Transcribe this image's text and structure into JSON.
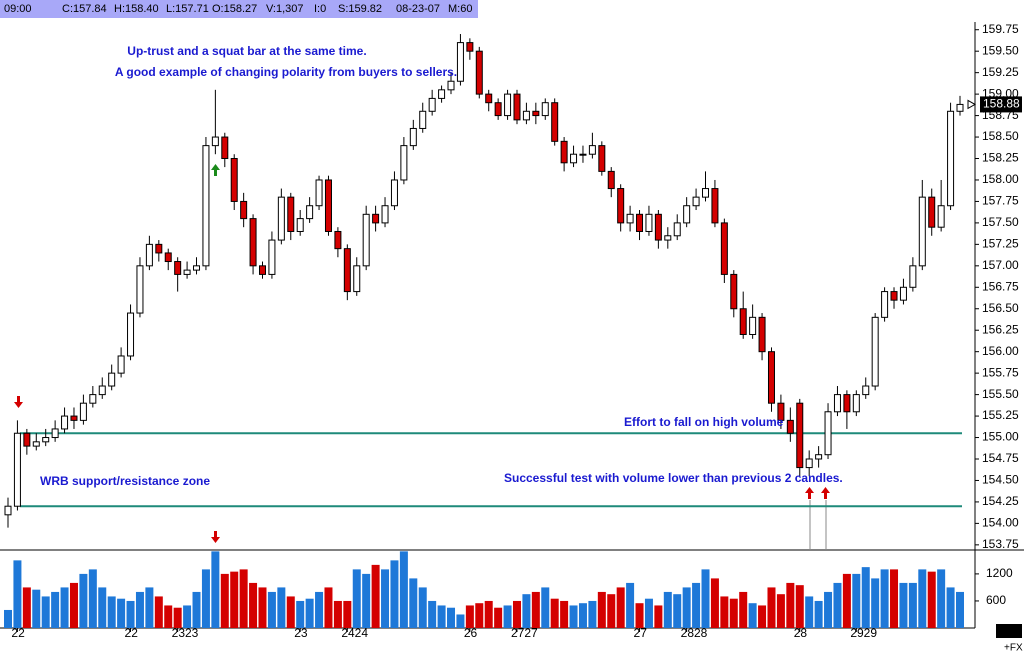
{
  "chart_data": {
    "type": "candlestick",
    "info_bar": [
      "09:00",
      "C:157.84",
      "H:158.40",
      "L:157.71",
      "O:158.27",
      "V:1,307",
      "I:0",
      "S:159.82",
      "08-23-07",
      "M:60"
    ],
    "annotations": [
      "Up-trust and a squat bar at the same time.",
      "A good example of changing polarity from buyers to sellers.",
      "Effort to fall on high volume",
      "WRB support/resistance zone",
      "Successful test with volume lower than previous 2 candles."
    ],
    "corner_label": "+FX",
    "up_color": "#ffffff",
    "down_color": "#d40000",
    "volume_up_color": "#1e78d8",
    "volume_down_color": "#d40000",
    "levels": [
      155.05,
      154.2
    ],
    "level_color": "#1e8a7a",
    "categories": [
      null,
      "22",
      null,
      null,
      null,
      null,
      null,
      null,
      null,
      null,
      null,
      null,
      null,
      "22",
      null,
      null,
      null,
      null,
      "2323",
      null,
      null,
      null,
      null,
      null,
      null,
      null,
      null,
      null,
      null,
      null,
      null,
      "23",
      null,
      null,
      null,
      null,
      "2424",
      null,
      null,
      null,
      null,
      null,
      null,
      null,
      null,
      null,
      null,
      null,
      null,
      "26",
      null,
      null,
      null,
      null,
      "2727",
      null,
      null,
      null,
      null,
      null,
      null,
      null,
      null,
      null,
      null,
      null,
      null,
      "27",
      null,
      null,
      null,
      null,
      "2828",
      null,
      null,
      null,
      null,
      null,
      null,
      null,
      null,
      null,
      null,
      null,
      "28",
      null,
      null,
      null,
      null,
      null,
      "2929",
      null,
      null,
      null,
      null,
      null,
      null,
      null,
      null,
      null,
      null,
      null
    ],
    "open": [
      154.1,
      154.2,
      155.05,
      154.9,
      154.95,
      155,
      155.1,
      155.25,
      155.2,
      155.4,
      155.5,
      155.6,
      155.75,
      155.95,
      156.45,
      157,
      157.25,
      157.15,
      157.05,
      156.9,
      156.95,
      157,
      158.4,
      158.5,
      158.25,
      157.75,
      157.55,
      157,
      156.9,
      157.3,
      157.8,
      157.4,
      157.55,
      157.7,
      158,
      157.4,
      157.2,
      156.7,
      157,
      157.6,
      157.5,
      157.7,
      158,
      158.4,
      158.6,
      158.8,
      158.95,
      159.05,
      159.15,
      159.6,
      159.5,
      159,
      158.9,
      158.75,
      159,
      158.7,
      158.8,
      158.75,
      158.9,
      158.45,
      158.2,
      158.3,
      158.3,
      158.4,
      158.1,
      157.9,
      157.5,
      157.6,
      157.4,
      157.6,
      157.3,
      157.35,
      157.5,
      157.7,
      157.8,
      157.9,
      157.5,
      156.9,
      156.5,
      156.2,
      156.4,
      156,
      155.4,
      155.2,
      155.4,
      154.65,
      154.75,
      154.8,
      155.3,
      155.5,
      155.3,
      155.5,
      155.6,
      156.4,
      156.7,
      156.6,
      156.75,
      157,
      157.8,
      157.45,
      157.7,
      158.8
    ],
    "high": [
      154.3,
      155.2,
      155.1,
      155.05,
      155.1,
      155.2,
      155.35,
      155.35,
      155.5,
      155.6,
      155.7,
      155.85,
      156.05,
      156.55,
      157.1,
      157.35,
      157.3,
      157.2,
      157.1,
      157.05,
      157.1,
      158.5,
      159.05,
      158.55,
      158.3,
      157.85,
      157.6,
      157.05,
      157.4,
      157.9,
      157.85,
      157.65,
      157.8,
      158.05,
      158.05,
      157.45,
      157.25,
      157.1,
      157.7,
      157.7,
      157.8,
      158.1,
      158.5,
      158.7,
      158.9,
      159.05,
      159.1,
      159.25,
      159.7,
      159.65,
      159.55,
      159.05,
      158.95,
      159.05,
      159.05,
      158.9,
      158.9,
      158.95,
      158.95,
      158.5,
      158.4,
      158.4,
      158.55,
      158.45,
      158.15,
      157.95,
      157.7,
      157.65,
      157.7,
      157.65,
      157.45,
      157.6,
      157.8,
      157.9,
      158.1,
      158,
      157.55,
      156.95,
      156.7,
      156.55,
      156.45,
      156.05,
      155.5,
      155.35,
      155.45,
      154.85,
      154.9,
      155.4,
      155.6,
      155.55,
      155.55,
      155.7,
      156.45,
      156.75,
      156.75,
      156.85,
      157.1,
      158,
      157.9,
      158,
      158.9,
      158.98
    ],
    "low": [
      153.95,
      154.15,
      154.8,
      154.85,
      154.9,
      154.95,
      155.05,
      155.1,
      155.15,
      155.35,
      155.45,
      155.55,
      155.7,
      155.9,
      156.4,
      156.95,
      157.05,
      156.95,
      156.7,
      156.85,
      156.9,
      156.95,
      158.3,
      158.15,
      157.65,
      157.45,
      156.9,
      156.85,
      156.85,
      157.25,
      157.3,
      157.35,
      157.5,
      157.65,
      157.35,
      157.1,
      156.6,
      156.65,
      156.95,
      157.4,
      157.45,
      157.65,
      157.95,
      158.35,
      158.55,
      158.75,
      158.9,
      159,
      159.1,
      159.4,
      158.95,
      158.8,
      158.7,
      158.7,
      158.65,
      158.65,
      158.65,
      158.7,
      158.4,
      158.1,
      158.15,
      158.2,
      158.25,
      158.05,
      157.8,
      157.4,
      157.4,
      157.3,
      157.35,
      157.2,
      157.2,
      157.3,
      157.45,
      157.65,
      157.75,
      157.45,
      156.8,
      156.4,
      156.15,
      156.15,
      155.9,
      155.3,
      155.1,
      154.95,
      154.55,
      154.55,
      154.65,
      154.75,
      155.25,
      155.1,
      155.25,
      155.45,
      155.55,
      156.35,
      156.5,
      156.55,
      156.7,
      156.95,
      157.35,
      157.4,
      157.65,
      158.75
    ],
    "close": [
      154.2,
      155.05,
      154.9,
      154.95,
      155,
      155.1,
      155.25,
      155.2,
      155.4,
      155.5,
      155.6,
      155.75,
      155.95,
      156.45,
      157,
      157.25,
      157.15,
      157.05,
      156.9,
      156.95,
      157,
      158.4,
      158.5,
      158.25,
      157.75,
      157.55,
      157,
      156.9,
      157.3,
      157.8,
      157.4,
      157.55,
      157.7,
      158,
      157.4,
      157.2,
      156.7,
      157,
      157.6,
      157.5,
      157.7,
      158,
      158.4,
      158.6,
      158.8,
      158.95,
      159.05,
      159.15,
      159.6,
      159.5,
      159,
      158.9,
      158.75,
      159,
      158.7,
      158.8,
      158.75,
      158.9,
      158.45,
      158.2,
      158.3,
      158.3,
      158.4,
      158.1,
      157.9,
      157.5,
      157.6,
      157.4,
      157.6,
      157.3,
      157.35,
      157.5,
      157.7,
      157.8,
      157.9,
      157.5,
      156.9,
      156.5,
      156.2,
      156.4,
      156,
      155.4,
      155.2,
      155.05,
      154.65,
      154.75,
      154.8,
      155.3,
      155.5,
      155.3,
      155.5,
      155.6,
      156.4,
      156.7,
      156.6,
      156.75,
      157,
      157.8,
      157.45,
      157.7,
      158.8,
      158.88
    ],
    "volume": [
      400,
      1500,
      900,
      850,
      700,
      800,
      900,
      1000,
      1200,
      1300,
      900,
      700,
      650,
      600,
      800,
      900,
      700,
      500,
      450,
      500,
      800,
      1300,
      1700,
      1200,
      1250,
      1300,
      1000,
      900,
      800,
      900,
      700,
      600,
      650,
      800,
      900,
      600,
      600,
      1300,
      1200,
      1400,
      1300,
      1500,
      1700,
      1100,
      900,
      600,
      500,
      450,
      300,
      500,
      550,
      600,
      450,
      500,
      600,
      750,
      800,
      900,
      650,
      600,
      500,
      550,
      600,
      800,
      750,
      900,
      1000,
      550,
      650,
      500,
      800,
      750,
      900,
      1000,
      1300,
      1100,
      700,
      650,
      800,
      550,
      500,
      900,
      750,
      1000,
      950,
      700,
      600,
      800,
      1000,
      1200,
      1200,
      1350,
      1100,
      1300,
      1300,
      1000,
      1000,
      1300,
      1250,
      1300,
      900,
      800
    ],
    "ylim": [
      153.69,
      159.84
    ],
    "yticks": [
      153.75,
      {
        "value": 154,
        "label": "154.00"
      },
      {
        "value": 154.25,
        "label": "154.25"
      },
      {
        "value": 154.5,
        "label": "154.50"
      },
      154.75,
      {
        "value": 155,
        "label": "155.00"
      },
      155.25,
      {
        "value": 155.5,
        "label": "155.50"
      },
      155.75,
      {
        "value": 156,
        "label": "156.00"
      },
      156.25,
      {
        "value": 156.5,
        "label": "156.50"
      },
      156.75,
      {
        "value": 157,
        "label": "157.00"
      },
      157.25,
      {
        "value": 157.5,
        "label": "157.50"
      },
      157.75,
      {
        "value": 158,
        "label": "158.00"
      },
      158.25,
      {
        "value": 158.5,
        "label": "158.50"
      },
      158.75,
      {
        "value": 159,
        "label": "159.00"
      },
      159.25,
      {
        "value": 159.5,
        "label": "159.50"
      },
      159.75
    ],
    "volume_ylim": [
      0,
      1730
    ],
    "volume_yticks": [
      600,
      1200
    ]
  }
}
